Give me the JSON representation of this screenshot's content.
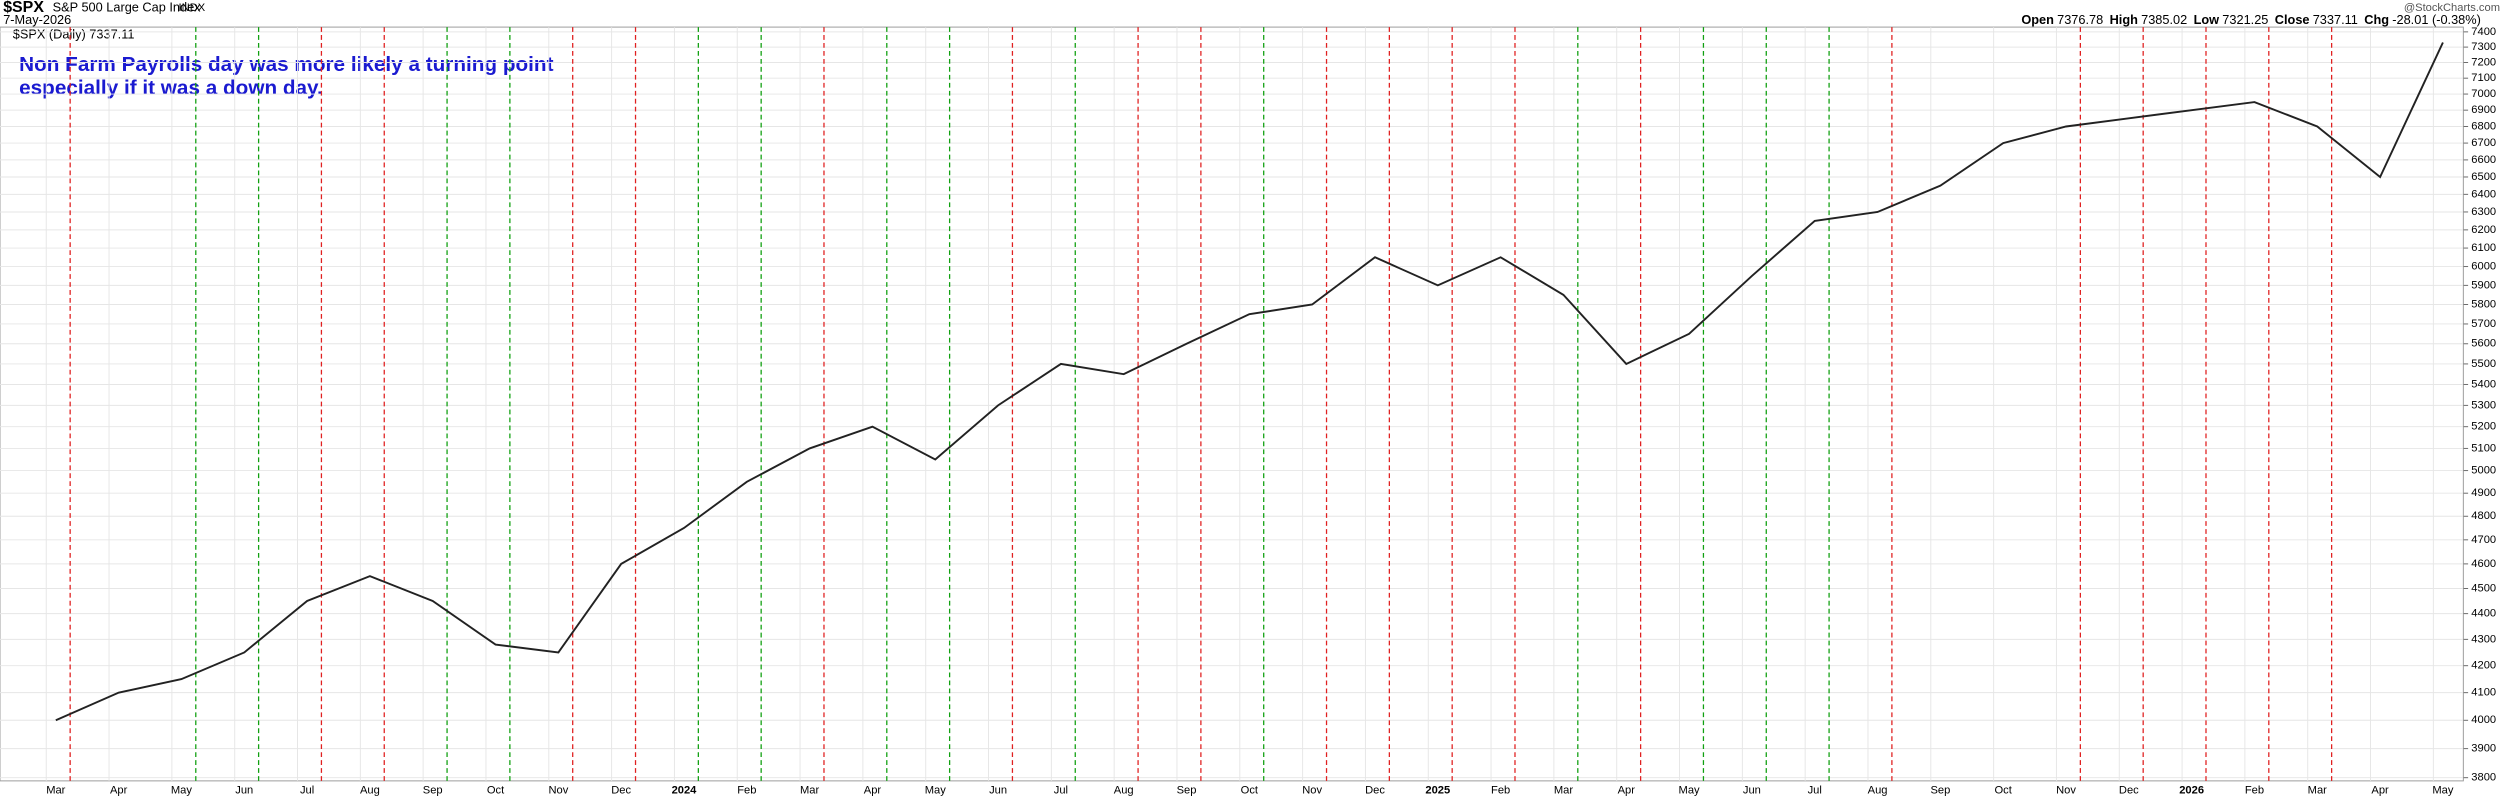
{
  "chart_data": {
    "type": "line",
    "symbol": "$SPX",
    "index_name": "S&P 500 Large Cap Index",
    "exchange": "INDX",
    "date": "7-May-2026",
    "quote": {
      "open_label": "Open",
      "open": "7376.78",
      "high_label": "High",
      "high": "7385.02",
      "low_label": "Low",
      "low": "7321.25",
      "close_label": "Close",
      "close": "7337.11",
      "chg_label": "Chg",
      "chg": "-28.01 (-0.38%)"
    },
    "watermark": "@StockCharts.com",
    "annotation": [
      "Non Farm Payrolls day was more likely a turning point",
      "especially if it was a down day."
    ],
    "categories": [
      "Mar",
      "Apr",
      "May",
      "Jun",
      "Jul",
      "Aug",
      "Sep",
      "Oct",
      "Nov",
      "Dec",
      "2024",
      "Feb",
      "Mar",
      "Apr",
      "May",
      "Jun",
      "Jul",
      "Aug",
      "Sep",
      "Oct",
      "Nov",
      "Dec",
      "2025",
      "Feb",
      "Mar",
      "Apr",
      "May",
      "Jun",
      "Jul",
      "Aug",
      "Sep",
      "Oct",
      "Nov",
      "Dec",
      "2026",
      "Feb",
      "Mar",
      "Apr",
      "May"
    ],
    "nfp_colors": [
      "#e02020",
      null,
      "#10a010",
      "#10a010",
      "#e02020",
      "#e02020",
      "#10a010",
      "#10a010",
      "#e02020",
      "#e02020",
      "#10a010",
      "#10a010",
      "#e02020",
      "#10a010",
      "#10a010",
      "#e02020",
      "#10a010",
      "#e02020",
      "#e02020",
      "#10a010",
      "#e02020",
      "#e02020",
      "#e02020",
      "#e02020",
      "#10a010",
      "#e02020",
      "#10a010",
      "#10a010",
      "#10a010",
      "#e02020",
      null,
      null,
      "#e02020",
      "#e02020",
      "#e02020",
      "#e02020",
      "#e02020",
      null,
      null
    ],
    "series": [
      {
        "name": "$SPX (Daily) 7337.11",
        "color": "#222222",
        "values": [
          4000,
          4100,
          4150,
          4250,
          4450,
          4550,
          4450,
          4280,
          4250,
          4600,
          4750,
          4950,
          5100,
          5200,
          5050,
          5300,
          5500,
          5450,
          5600,
          5750,
          5800,
          6050,
          5900,
          6050,
          5850,
          5500,
          5650,
          5950,
          6250,
          6300,
          6450,
          6700,
          6800,
          6850,
          6900,
          6950,
          6800,
          6500,
          7330
        ]
      }
    ],
    "ylim": [
      3800,
      7400
    ],
    "log_scale": true,
    "yticks": [
      3800,
      3900,
      4000,
      4100,
      4200,
      4300,
      4400,
      4500,
      4600,
      4700,
      4800,
      4900,
      5000,
      5100,
      5200,
      5300,
      5400,
      5500,
      5600,
      5700,
      5800,
      5900,
      6000,
      6100,
      6200,
      6300,
      6400,
      6500,
      6600,
      6700,
      6800,
      6900,
      7000,
      7100,
      7200,
      7300,
      7400
    ],
    "grid": true
  }
}
